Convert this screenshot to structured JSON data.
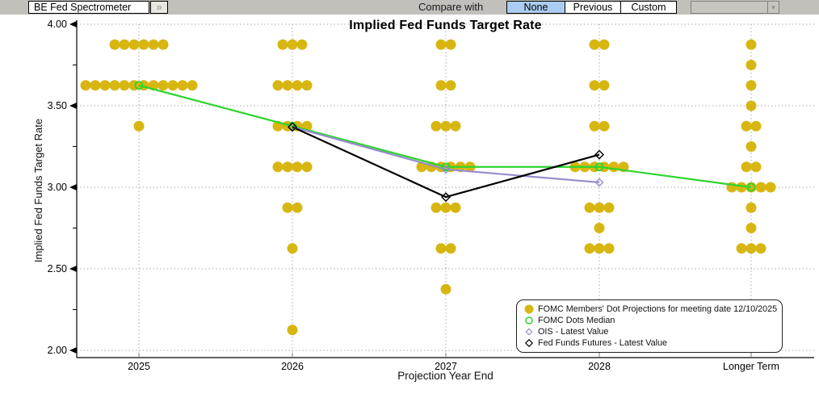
{
  "toolbar": {
    "selector_label": "BE Fed Spectrometer",
    "expand_icon": "»",
    "compare_with_label": "Compare with",
    "compare_options": [
      {
        "label": "None",
        "selected": true
      },
      {
        "label": "Previous",
        "selected": false
      },
      {
        "label": "Custom",
        "selected": false
      }
    ],
    "compare_dropdown_value": "",
    "dropdown_arrow_icon": "▾"
  },
  "chart_data": {
    "type": "scatter",
    "title": "Implied Fed Funds Target Rate",
    "xlabel": "Projection Year End",
    "ylabel": "Implied Fed Funds Target Rate",
    "ylim": [
      2.0,
      4.0
    ],
    "yticks": [
      2.0,
      2.5,
      3.0,
      3.5,
      4.0
    ],
    "y_minor_step": 0.25,
    "grid": true,
    "legend_position": "bottom-right",
    "categories": [
      "2025",
      "2026",
      "2027",
      "2028",
      "Longer Term"
    ],
    "colors": {
      "dots": "#d8b611",
      "median": "#2dd52d",
      "ois": "#978ccd",
      "futures": "#000000",
      "grid": "#a9a9a9"
    },
    "series": [
      {
        "name": "FOMC Members' Dot Projections for meeting date 12/10/2025",
        "type": "dot-histogram",
        "color": "#d8b611",
        "marker": "filled-circle",
        "dots": [
          [
            [
              3.875,
              6
            ],
            [
              3.625,
              12
            ],
            [
              3.375,
              1
            ]
          ],
          [
            [
              3.875,
              3
            ],
            [
              3.625,
              4
            ],
            [
              3.375,
              4
            ],
            [
              3.125,
              4
            ],
            [
              2.875,
              2
            ],
            [
              2.625,
              1
            ],
            [
              2.125,
              1
            ]
          ],
          [
            [
              3.875,
              2
            ],
            [
              3.625,
              2
            ],
            [
              3.375,
              3
            ],
            [
              3.125,
              6
            ],
            [
              2.875,
              3
            ],
            [
              2.625,
              2
            ],
            [
              2.375,
              1
            ]
          ],
          [
            [
              3.875,
              2
            ],
            [
              3.625,
              2
            ],
            [
              3.375,
              2
            ],
            [
              3.125,
              6
            ],
            [
              2.875,
              3
            ],
            [
              2.75,
              1
            ],
            [
              2.625,
              3
            ]
          ],
          [
            [
              3.875,
              1
            ],
            [
              3.75,
              1
            ],
            [
              3.625,
              1
            ],
            [
              3.5,
              1
            ],
            [
              3.375,
              2
            ],
            [
              3.25,
              1
            ],
            [
              3.125,
              2
            ],
            [
              3.0,
              5
            ],
            [
              2.875,
              1
            ],
            [
              2.75,
              1
            ],
            [
              2.625,
              3
            ]
          ]
        ]
      },
      {
        "name": "FOMC Dots Median",
        "type": "line",
        "color": "#2dd52d",
        "marker": "open-circle",
        "values": [
          3.625,
          3.375,
          3.125,
          3.125,
          3.0
        ]
      },
      {
        "name": "OIS - Latest Value",
        "type": "line",
        "color": "#978ccd",
        "marker": "open-diamond-small",
        "values": [
          null,
          3.37,
          3.11,
          3.03,
          null
        ]
      },
      {
        "name": "Fed Funds Futures - Latest Value",
        "type": "line",
        "color": "#000000",
        "marker": "open-diamond",
        "values": [
          null,
          3.37,
          2.94,
          3.2,
          null
        ]
      }
    ]
  }
}
